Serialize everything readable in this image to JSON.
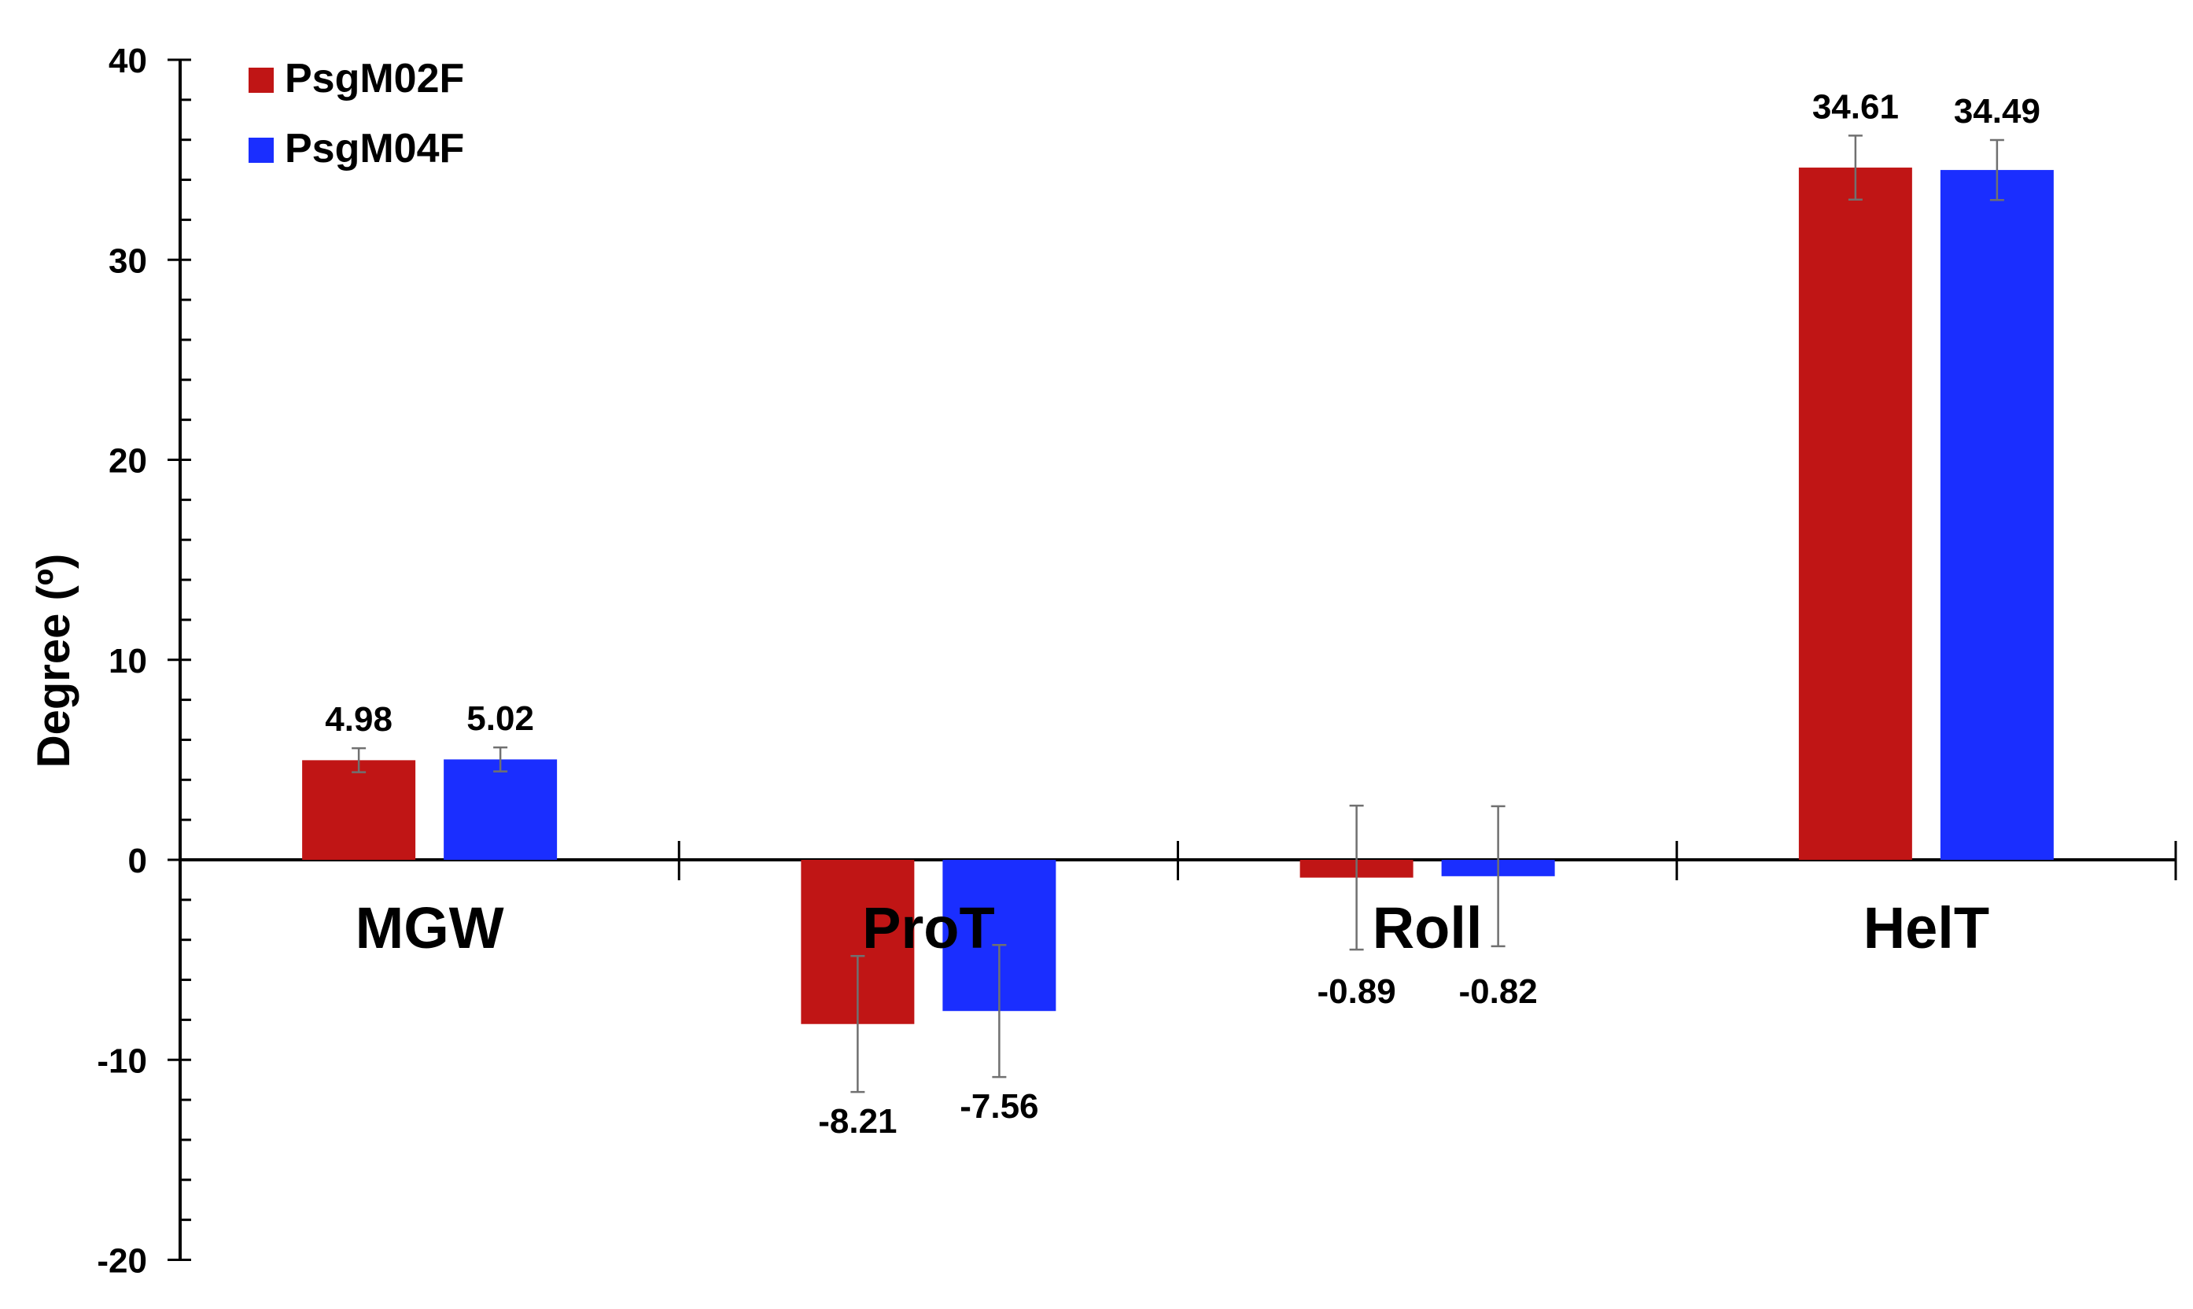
{
  "chart_data": {
    "type": "bar",
    "title": "",
    "xlabel": "",
    "ylabel": "Degree (º)",
    "ylim": [
      -20,
      40
    ],
    "yticks": [
      -20,
      -10,
      0,
      10,
      20,
      30,
      40
    ],
    "y_minor_step": 2,
    "grid": false,
    "legend_position": "top-left",
    "categories": [
      "MGW",
      "ProT",
      "Roll",
      "HelT"
    ],
    "series": [
      {
        "name": "PsgM02F",
        "color": "#c01515",
        "values": [
          4.98,
          -8.21,
          -0.89,
          34.61
        ],
        "errors": [
          0.6,
          3.4,
          3.6,
          1.6
        ],
        "labels": [
          "4.98",
          "-8.21",
          "-0.89",
          "34.61"
        ]
      },
      {
        "name": "PsgM04F",
        "color": "#1a2eff",
        "values": [
          5.02,
          -7.56,
          -0.82,
          34.49
        ],
        "errors": [
          0.6,
          3.3,
          3.5,
          1.5
        ],
        "labels": [
          "5.02",
          "-7.56",
          "-0.82",
          "34.49"
        ]
      }
    ]
  },
  "legend": {
    "items": [
      {
        "label": "PsgM02F",
        "color": "#c01515"
      },
      {
        "label": "PsgM04F",
        "color": "#1a2eff"
      }
    ]
  },
  "axis": {
    "y_label": "Degree (º)",
    "y_tick_labels": [
      "40",
      "30",
      "20",
      "10",
      "0",
      "-10",
      "-20"
    ]
  },
  "colors": {
    "axis": "#000000",
    "error_bar": "#707070"
  }
}
